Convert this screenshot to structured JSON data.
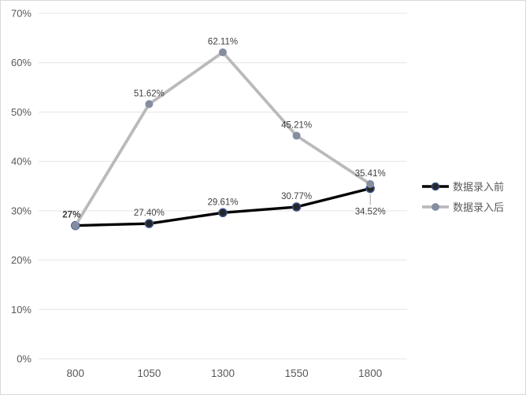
{
  "chart_data": {
    "type": "line",
    "title": "",
    "xlabel": "",
    "ylabel": "",
    "categories": [
      "800",
      "1050",
      "1300",
      "1550",
      "1800"
    ],
    "y_ticks": [
      "0%",
      "10%",
      "20%",
      "30%",
      "40%",
      "50%",
      "60%",
      "70%"
    ],
    "ylim": [
      0,
      70
    ],
    "y_step": 10,
    "grid": true,
    "legend_position": "right",
    "series": [
      {
        "name": "数据录入前",
        "values": [
          27,
          27.4,
          29.61,
          30.77,
          34.52
        ],
        "labels": [
          {
            "text": "27%",
            "pos": "above",
            "bold": true,
            "dx": -5
          },
          {
            "text": "27.40%",
            "pos": "above",
            "bold": false,
            "dx": 0
          },
          {
            "text": "29.61%",
            "pos": "above",
            "bold": false,
            "dx": 0
          },
          {
            "text": "30.77%",
            "pos": "above",
            "bold": false,
            "dx": 0
          },
          {
            "text": "34.52%",
            "pos": "below-leader",
            "bold": false,
            "dx": 0
          }
        ],
        "line_color": "#000000",
        "marker_fill": "#262626",
        "marker_stroke": "#3a5289"
      },
      {
        "name": "数据录入后",
        "values": [
          27,
          51.62,
          62.11,
          45.21,
          35.41
        ],
        "labels": [
          {
            "text": "",
            "pos": "above",
            "bold": false,
            "dx": 0
          },
          {
            "text": "51.62%",
            "pos": "above",
            "bold": false,
            "dx": 0
          },
          {
            "text": "62.11%",
            "pos": "above",
            "bold": false,
            "dx": 0
          },
          {
            "text": "45.21%",
            "pos": "above",
            "bold": false,
            "dx": 0
          },
          {
            "text": "35.41%",
            "pos": "above",
            "bold": false,
            "dx": 0
          }
        ],
        "line_color": "#bababa",
        "marker_fill": "#878d99",
        "marker_stroke": "#7f8db0"
      }
    ],
    "colors": {
      "grid": "#e4e4e4",
      "axis_label": "#595959",
      "data_label": "#404040",
      "leader_line": "#a6a6a6",
      "frame_border": "#d9d9d9",
      "background": "#ffffff"
    }
  }
}
